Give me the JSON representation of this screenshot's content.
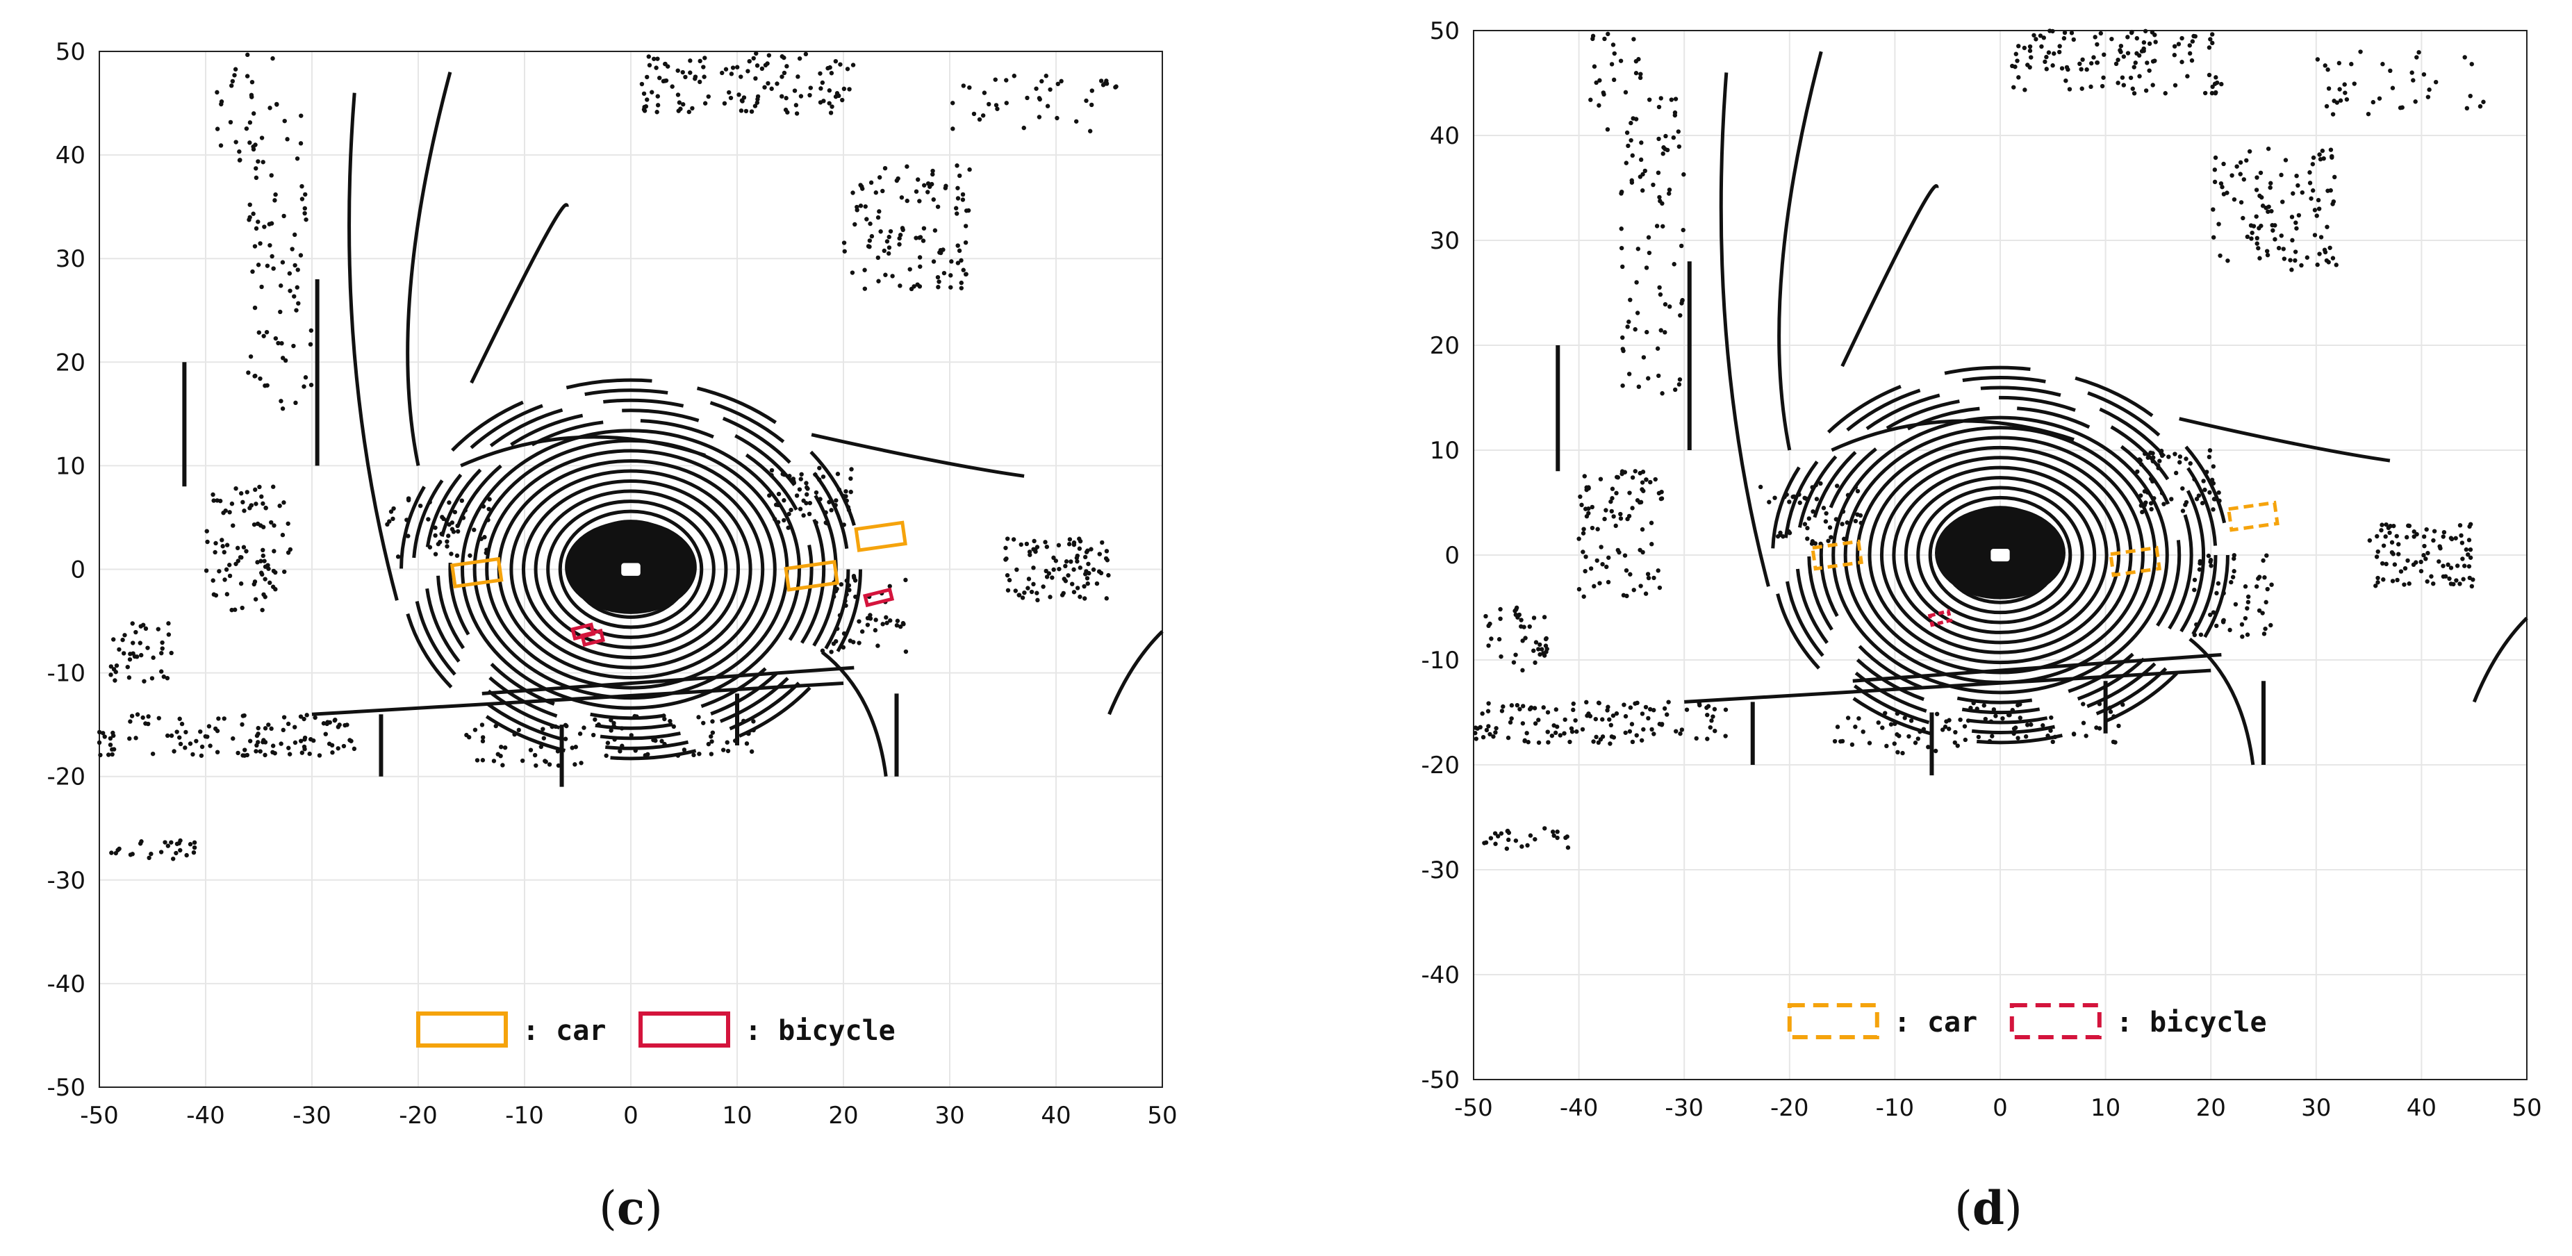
{
  "chart_data": [
    {
      "type": "scatter",
      "caption_letter": "c",
      "xlim": [
        -50,
        50
      ],
      "ylim": [
        -50,
        50
      ],
      "x_ticks": [
        -50,
        -40,
        -30,
        -20,
        -10,
        0,
        10,
        20,
        30,
        40,
        50
      ],
      "y_ticks": [
        50,
        40,
        30,
        20,
        10,
        0,
        -10,
        -20,
        -30,
        -40,
        -50
      ],
      "grid": true,
      "legend": {
        "placement": "bottom-center",
        "line_style": "solid",
        "entries": [
          {
            "label": ": car",
            "color": "#F5A30C"
          },
          {
            "label": ": bicycle",
            "color": "#D4143C"
          }
        ]
      },
      "boxes": [
        {
          "class": "car",
          "cx": -14.5,
          "cy": -0.3,
          "w": 4.4,
          "h": 2.0
        },
        {
          "class": "car",
          "cx": 17,
          "cy": -0.6,
          "w": 4.6,
          "h": 2.0
        },
        {
          "class": "car",
          "cx": 23.5,
          "cy": 3.2,
          "w": 4.4,
          "h": 2.0
        },
        {
          "class": "bicycle",
          "cx": 23.3,
          "cy": -2.7,
          "w": 2.4,
          "h": 0.9
        },
        {
          "class": "bicycle",
          "cx": -4.5,
          "cy": -6.0,
          "w": 1.8,
          "h": 0.9
        },
        {
          "class": "bicycle",
          "cx": -3.6,
          "cy": -6.6,
          "w": 1.8,
          "h": 0.9
        }
      ]
    },
    {
      "type": "scatter",
      "caption_letter": "d",
      "xlim": [
        -50,
        50
      ],
      "ylim": [
        -50,
        50
      ],
      "x_ticks": [
        -50,
        -40,
        -30,
        -20,
        -10,
        0,
        10,
        20,
        30,
        40,
        50
      ],
      "y_ticks": [
        50,
        40,
        30,
        20,
        10,
        0,
        -10,
        -20,
        -30,
        -40,
        -50
      ],
      "grid": true,
      "legend": {
        "placement": "bottom-center",
        "line_style": "dashed",
        "entries": [
          {
            "label": ": car",
            "color": "#F5A30C"
          },
          {
            "label": ": bicycle",
            "color": "#D4143C"
          }
        ]
      },
      "boxes": [
        {
          "class": "car",
          "cx": -15.5,
          "cy": 0.0,
          "w": 4.4,
          "h": 2.0
        },
        {
          "class": "car",
          "cx": 12.8,
          "cy": -0.6,
          "w": 4.4,
          "h": 2.0
        },
        {
          "class": "car",
          "cx": 24,
          "cy": 3.7,
          "w": 4.4,
          "h": 2.0
        },
        {
          "class": "bicycle",
          "cx": -5.7,
          "cy": -6.0,
          "w": 1.8,
          "h": 0.9
        }
      ]
    }
  ]
}
